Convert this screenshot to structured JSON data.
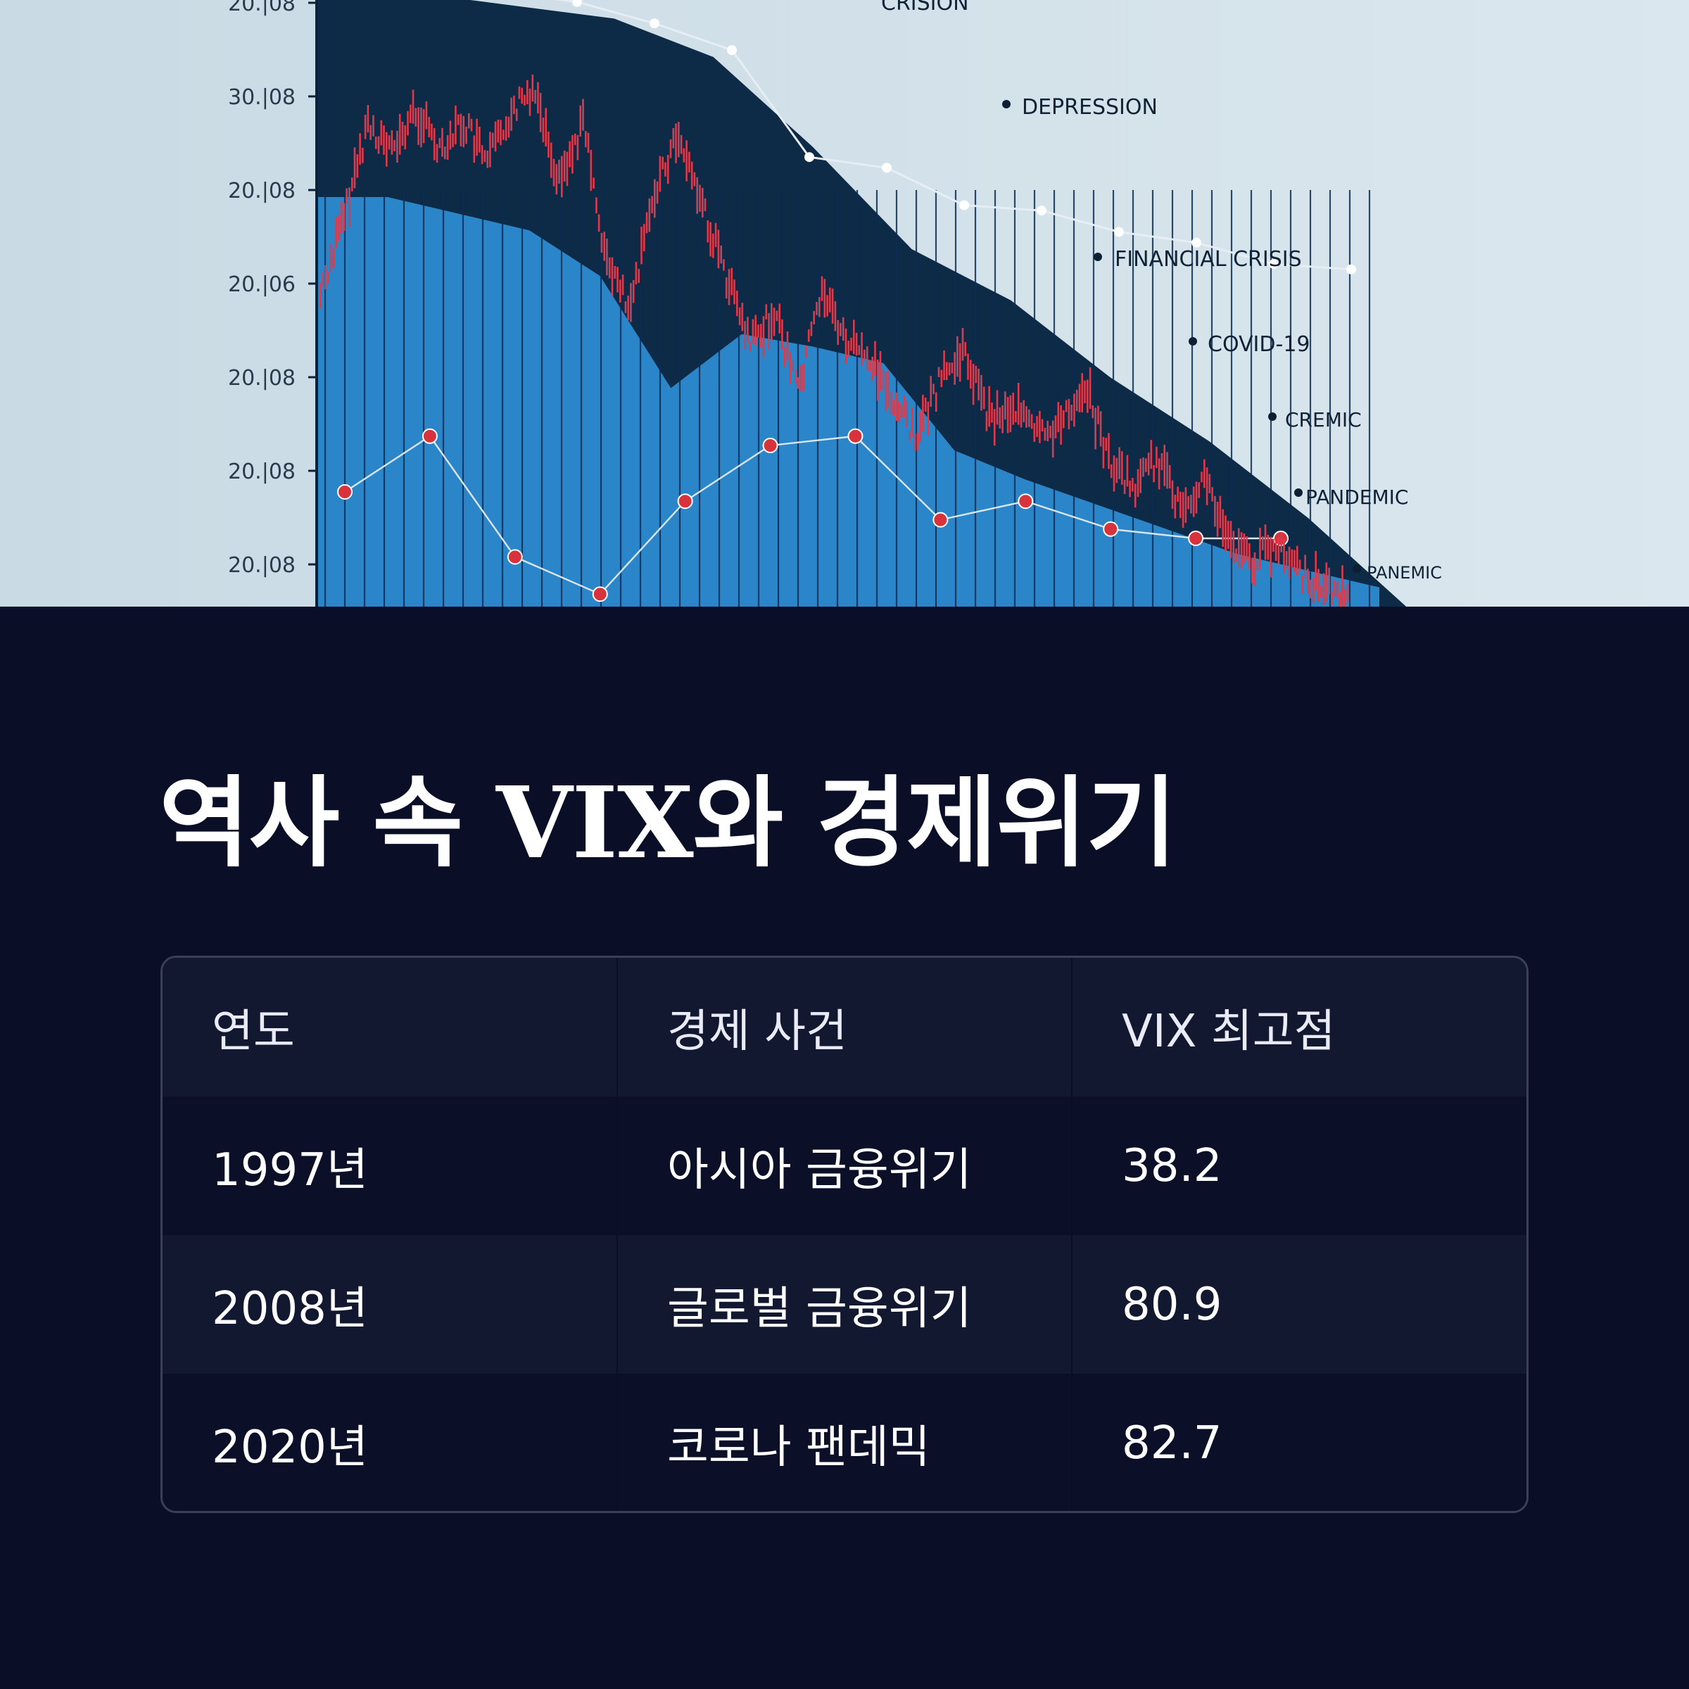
{
  "chart_data": {
    "type": "line",
    "title": "",
    "xlabel": "",
    "ylabel": "",
    "y_tick_labels": [
      "20.|08",
      "30.|08",
      "20.|08",
      "20.|06",
      "20.|08",
      "20.|08",
      "20.|08"
    ],
    "annotations": [
      "CRISION",
      "DEPRESSION",
      "FINANCIAL CRISIS",
      "COVID-19",
      "CREMIC",
      "PANDEMIC",
      "PANEMIC"
    ],
    "series": [
      {
        "kind": "candlestick-trend",
        "color": "#e0394a",
        "values": [
          55,
          68,
          84,
          79,
          86,
          80,
          84,
          77,
          86,
          90,
          74,
          84,
          60,
          52,
          73,
          82,
          70,
          58,
          46,
          52,
          39,
          56,
          47,
          44,
          37,
          31,
          41,
          45,
          34,
          36,
          31,
          33,
          40,
          27,
          22,
          27,
          19,
          24,
          13,
          10,
          12,
          8,
          6,
          3
        ]
      },
      {
        "kind": "white-line",
        "color": "#e6edf5",
        "values": [
          100,
          99,
          97,
          93,
          88,
          68,
          66,
          59,
          58,
          54,
          52,
          48,
          47
        ]
      },
      {
        "kind": "red-dot-line",
        "color": "#d8323d",
        "values": [
          5,
          11,
          -2,
          -6,
          4,
          10,
          11,
          2,
          4,
          1,
          0,
          0
        ]
      },
      {
        "kind": "blue-area",
        "color": "#2a86c8",
        "values": [
          100,
          100,
          96,
          92,
          81,
          54,
          67,
          64,
          60,
          39,
          32,
          26,
          20,
          14,
          10,
          6
        ]
      },
      {
        "kind": "navy-envelope",
        "color": "#0d2a47",
        "values": [
          100,
          100,
          98,
          96,
          90,
          76,
          60,
          52,
          40,
          30,
          18,
          4
        ]
      }
    ],
    "grid": false,
    "legend": "none"
  },
  "title": "역사 속 VIX와 경제위기",
  "table": {
    "headers": [
      "연도",
      "경제 사건",
      "VIX 최고점"
    ],
    "rows": [
      [
        "1997년",
        "아시아 금융위기",
        "38.2"
      ],
      [
        "2008년",
        "글로벌 금융위기",
        "80.9"
      ],
      [
        "2020년",
        "코로나 팬데믹",
        "82.7"
      ]
    ]
  },
  "colors": {
    "background": "#0a0e27",
    "chart_background": "#d3e2ea",
    "area_blue": "#2a86c8",
    "area_navy": "#0d2a47",
    "candle_red": "#e0394a",
    "table_border": "#3a4058"
  }
}
